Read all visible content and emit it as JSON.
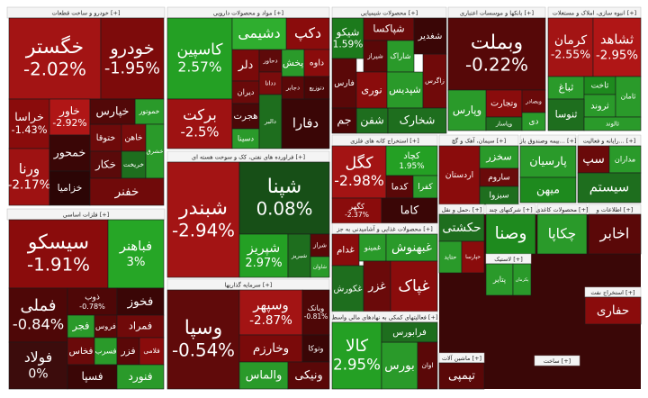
{
  "sectors": [
    {
      "title": "خودرو و ساخت قطعات [+]",
      "tiles": [
        {
          "name": "خگستر",
          "change": "-2.02%"
        },
        {
          "name": "خودرو",
          "change": "-1.95%"
        },
        {
          "name": "خراسا",
          "change": "-1.43%"
        },
        {
          "name": "خاور",
          "change": "-2.92%"
        },
        {
          "name": "خموتور"
        },
        {
          "name": "ختوقا"
        },
        {
          "name": "خاهن"
        },
        {
          "name": "خپارس"
        },
        {
          "name": "ورنا",
          "change": "-2.17%"
        },
        {
          "name": "خکار"
        },
        {
          "name": "خمحور"
        },
        {
          "name": "خزامیا"
        },
        {
          "name": "خریخت"
        },
        {
          "name": "خشرق"
        },
        {
          "name": "خفنر"
        }
      ]
    },
    {
      "title": "مواد و محصولات دارویی [+]",
      "tiles": [
        {
          "name": "کاسپین",
          "change": "2.57%"
        },
        {
          "name": "برکت",
          "change": "-2.5%"
        },
        {
          "name": "دکپ"
        },
        {
          "name": "دلر"
        },
        {
          "name": "دحاور"
        },
        {
          "name": "پخش"
        },
        {
          "name": "داوه"
        },
        {
          "name": "دیران"
        },
        {
          "name": "ددانا"
        },
        {
          "name": "دجابر"
        },
        {
          "name": "دتوزیع"
        },
        {
          "name": "هجرت"
        },
        {
          "name": "دسینا"
        },
        {
          "name": "دالبر"
        },
        {
          "name": "دشیمی"
        },
        {
          "name": "دفارا"
        }
      ]
    },
    {
      "title": "محصولات شیمیایی [+]",
      "tiles": [
        {
          "name": "شیکو",
          "change": "1.59%"
        },
        {
          "name": "شپاکسا"
        },
        {
          "name": "شاراک"
        },
        {
          "name": "شیراز"
        },
        {
          "name": "شفن"
        },
        {
          "name": "فارس"
        },
        {
          "name": "نوری"
        },
        {
          "name": "شپدیس"
        },
        {
          "name": "زاگرس"
        },
        {
          "name": "جم"
        },
        {
          "name": "شخارک"
        },
        {
          "name": "شغدیر"
        }
      ]
    },
    {
      "title": "بانکها و موسسات اعتباری [+]",
      "tiles": [
        {
          "name": "وبملت",
          "change": "-0.22%"
        },
        {
          "name": "وتجارت"
        },
        {
          "name": "وپارس"
        },
        {
          "name": "وبصادر"
        },
        {
          "name": "وپاسار"
        },
        {
          "name": "دی"
        }
      ]
    },
    {
      "title": "انبوه سازی، املاک و مستغلات [+]",
      "tiles": [
        {
          "name": "کرمان",
          "change": "-2.55%"
        },
        {
          "name": "ثشاهد",
          "change": "-2.95%"
        },
        {
          "name": "ثباغ"
        },
        {
          "name": "ثاخت"
        },
        {
          "name": "ثروند"
        },
        {
          "name": "ثامان"
        },
        {
          "name": "ثنوسا"
        },
        {
          "name": "ثالوند"
        }
      ]
    },
    {
      "title": "فراورده های نفتی، کک و سوخت هسته ای [+]",
      "tiles": [
        {
          "name": "شبندر",
          "change": "-2.94%"
        },
        {
          "name": "شپنا",
          "change": "0.08%"
        },
        {
          "name": "شپریز",
          "change": "2.97%"
        },
        {
          "name": "شبریز"
        },
        {
          "name": "شراز"
        },
        {
          "name": "شاوان"
        }
      ]
    },
    {
      "title": "فلزات اساسی [+]",
      "tiles": [
        {
          "name": "سیسکو",
          "change": "-1.91%"
        },
        {
          "name": "فباهنر",
          "change": "3%"
        },
        {
          "name": "فملی",
          "change": "-0.84%"
        },
        {
          "name": "فولاد",
          "change": "0%"
        },
        {
          "name": "ذوب",
          "change": "-0.78%"
        },
        {
          "name": "فخوز"
        },
        {
          "name": "فجر"
        },
        {
          "name": "فروس"
        },
        {
          "name": "فمراد"
        },
        {
          "name": "فخاس"
        },
        {
          "name": "فسرب"
        },
        {
          "name": "فزر"
        },
        {
          "name": "فلامی"
        },
        {
          "name": "فسپا"
        },
        {
          "name": "فنورد"
        }
      ]
    },
    {
      "title": "سرمایه گذاریها [+]",
      "tiles": [
        {
          "name": "وسپا",
          "change": "-0.54%"
        },
        {
          "name": "وسپهر",
          "change": "-2.87%"
        },
        {
          "name": "وبانک",
          "change": "-0.81%"
        },
        {
          "name": "وخارزم"
        },
        {
          "name": "والماس"
        },
        {
          "name": "وتوکا"
        },
        {
          "name": "ونیکی"
        }
      ]
    },
    {
      "title": "استخراج کانه های فلزی [+]",
      "tiles": [
        {
          "name": "کگل",
          "change": "-2.98%"
        },
        {
          "name": "کچاد",
          "change": "1.95%"
        },
        {
          "name": "کدما"
        },
        {
          "name": "کفرا"
        },
        {
          "name": "کگهر",
          "change": "-2.37%"
        },
        {
          "name": "کاما"
        }
      ]
    },
    {
      "title": "سیمان، آهک و گچ [+]",
      "tiles": [
        {
          "name": "اردستان"
        },
        {
          "name": "سخزر"
        },
        {
          "name": "ساروم"
        },
        {
          "name": "سبزوا"
        }
      ]
    },
    {
      "title": "بیمه وصندوق باز... [+]",
      "tiles": [
        {
          "name": "پارسیان"
        },
        {
          "name": "میهن"
        }
      ]
    },
    {
      "title": "رایانه و فعالیت... [+]",
      "tiles": [
        {
          "name": "سپ"
        },
        {
          "name": "مداران"
        },
        {
          "name": "سیستم"
        }
      ]
    },
    {
      "title": "محصولات غذایی و آشامیدنی به جز [+]",
      "tiles": [
        {
          "name": "غدام"
        },
        {
          "name": "غمینو"
        },
        {
          "name": "غبهنوش"
        },
        {
          "name": "غکورش"
        },
        {
          "name": "غزر"
        },
        {
          "name": "غپاک"
        }
      ]
    },
    {
      "title": "فعالیتهای کمکی به نهادهای مالی واسط [+]",
      "tiles": [
        {
          "name": "کالا",
          "change": "2.95%"
        },
        {
          "name": "بورس"
        },
        {
          "name": "فرابورس"
        },
        {
          "name": "اوان"
        }
      ]
    },
    {
      "title": "حمل و نقل، [+]",
      "tiles": [
        {
          "name": "حکشتی"
        },
        {
          "name": "حتاید"
        },
        {
          "name": "حپارسا"
        }
      ]
    },
    {
      "title": "شرکتهای چند [+]",
      "tiles": [
        {
          "name": "وصنا"
        }
      ]
    },
    {
      "title": "محصولات کاغذی [+]",
      "tiles": [
        {
          "name": "چکاپا"
        }
      ]
    },
    {
      "title": "اطلاعات و [+]",
      "tiles": [
        {
          "name": "اخابر"
        }
      ]
    },
    {
      "title": "لاستیک [+]",
      "tiles": [
        {
          "name": "پتایر"
        },
        {
          "name": "پکرمان"
        }
      ]
    },
    {
      "title": "ماشین آلات [+]",
      "tiles": [
        {
          "name": "تپمپی"
        }
      ]
    },
    {
      "title": "ساخت [+]",
      "tiles": []
    },
    {
      "title": "استخراج نفت [+]",
      "tiles": [
        {
          "name": "حفاری"
        }
      ]
    }
  ]
}
